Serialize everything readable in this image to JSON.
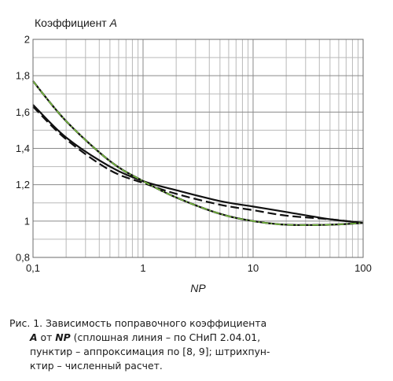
{
  "chart_data": {
    "type": "line",
    "title": "",
    "ylabel_prefix": "Коэффициент ",
    "ylabel_var": "A",
    "xlabel": "NP",
    "x_scale": "log",
    "xlim": [
      0.1,
      100
    ],
    "ylim": [
      0.8,
      2
    ],
    "grid": true,
    "x_ticks": [
      0.1,
      1,
      10,
      100
    ],
    "x_tick_labels": [
      "0,1",
      "1",
      "10",
      "100"
    ],
    "y_ticks": [
      0.8,
      1,
      1.2,
      1.4,
      1.6,
      1.8,
      2
    ],
    "y_tick_labels": [
      "0,8",
      "1",
      "1,2",
      "1,4",
      "1,6",
      "1,8",
      "2"
    ],
    "series": [
      {
        "style": "solid",
        "color": "#111111",
        "x": [
          0.1,
          0.2,
          0.5,
          1,
          2,
          5,
          10,
          20,
          50,
          100
        ],
        "y": [
          1.64,
          1.46,
          1.3,
          1.22,
          1.17,
          1.11,
          1.08,
          1.05,
          1.01,
          0.99
        ]
      },
      {
        "style": "solid",
        "color": "#111111",
        "x": [
          0.1,
          0.2,
          0.5,
          1,
          2,
          5,
          10,
          20,
          50,
          100
        ],
        "y": [
          1.77,
          1.55,
          1.33,
          1.22,
          1.13,
          1.04,
          1.0,
          0.98,
          0.98,
          0.99
        ]
      },
      {
        "style": "dashed",
        "color": "#111111",
        "x": [
          0.1,
          0.2,
          0.5,
          1,
          2,
          5,
          10,
          20,
          50,
          100
        ],
        "y": [
          1.63,
          1.45,
          1.28,
          1.21,
          1.15,
          1.09,
          1.06,
          1.03,
          1.01,
          0.99
        ]
      },
      {
        "style": "dashed",
        "color": "#111111",
        "x": [
          0.1,
          0.2,
          0.5,
          1,
          2,
          5,
          10,
          20,
          50,
          100
        ],
        "y": [
          1.77,
          1.55,
          1.33,
          1.22,
          1.13,
          1.04,
          1.0,
          0.98,
          0.98,
          0.99
        ]
      },
      {
        "style": "dashdot",
        "color": "#7cc242",
        "x": [
          0.1,
          0.2,
          0.5,
          1,
          2,
          5,
          10,
          20,
          50,
          100
        ],
        "y": [
          1.77,
          1.55,
          1.33,
          1.22,
          1.13,
          1.04,
          1.0,
          0.98,
          0.98,
          0.99
        ]
      }
    ]
  },
  "caption": {
    "prefix": "Рис. 1. Зависимость поправочного коэффициента",
    "var_a": "A",
    "text_ot": " от ",
    "var_np": "NP",
    "line2_rest": " (сплошная линия – по СНиП 2.04.01,",
    "line3": "пунктир – аппроксимация по [8, 9]; штрихпун-",
    "line4": "ктир – численный расчет."
  }
}
